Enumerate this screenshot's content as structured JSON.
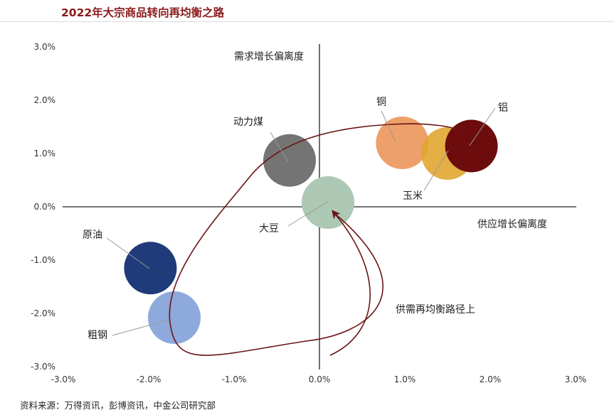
{
  "title": "2022年大宗商品转向再均衡之路",
  "source": "资料来源：万得资讯，彭博资讯，中金公司研究部",
  "chart_data": {
    "type": "scatter",
    "title": "2022年大宗商品转向再均衡之路",
    "xlabel": "供应增长偏离度",
    "ylabel": "需求增长偏离度",
    "xlim": [
      -3.0,
      3.0
    ],
    "ylim": [
      -3.0,
      3.0
    ],
    "x_ticks": [
      "-3.0%",
      "-2.0%",
      "-1.0%",
      "0.0%",
      "1.0%",
      "2.0%",
      "3.0%"
    ],
    "y_ticks": [
      "3.0%",
      "2.0%",
      "1.0%",
      "0.0%",
      "-1.0%",
      "-2.0%",
      "-3.0%"
    ],
    "grid": false,
    "points": [
      {
        "name": "动力煤",
        "x": -0.35,
        "y": 0.87,
        "color": "#747474"
      },
      {
        "name": "大豆",
        "x": 0.1,
        "y": 0.08,
        "color": "#adc8b4"
      },
      {
        "name": "铜",
        "x": 0.97,
        "y": 1.2,
        "color": "#eea06a"
      },
      {
        "name": "玉米",
        "x": 1.5,
        "y": 1.0,
        "color": "#e0a42a"
      },
      {
        "name": "铝",
        "x": 1.78,
        "y": 1.14,
        "color": "#6d0c0c"
      },
      {
        "name": "原油",
        "x": -1.98,
        "y": -1.15,
        "color": "#1f3b7a"
      },
      {
        "name": "粗钢",
        "x": -1.7,
        "y": -2.08,
        "color": "#8ea9dc"
      }
    ],
    "annotation": "供需再均衡路径上"
  }
}
